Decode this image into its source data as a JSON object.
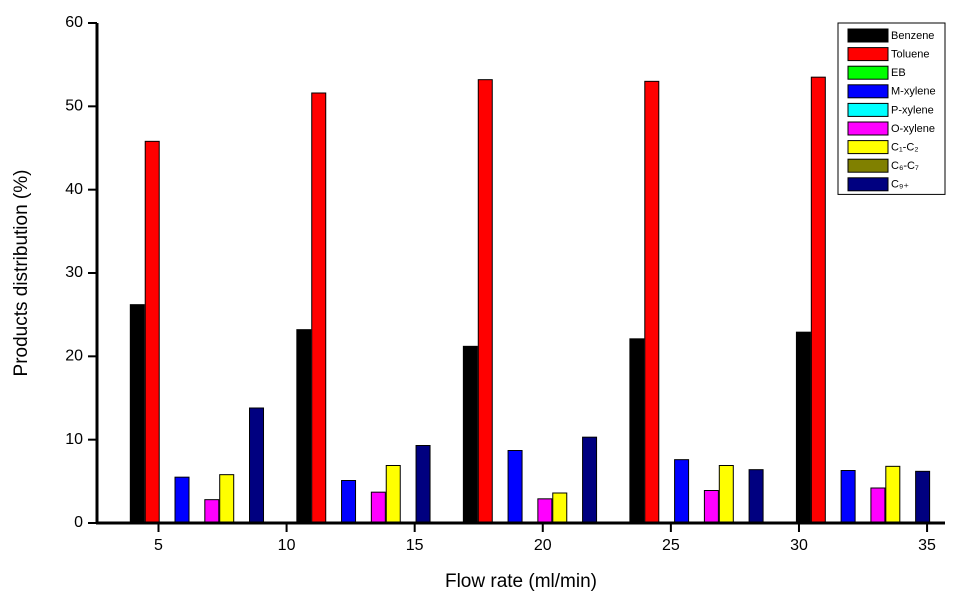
{
  "chart_data": {
    "type": "bar",
    "x_label": "Flow rate (ml/min)",
    "y_label": "Products distribution (%)",
    "x": [
      6.5,
      13,
      19.5,
      26,
      32.5
    ],
    "xlim": [
      2.6,
      35.7
    ],
    "xticks": [
      5,
      10,
      15,
      20,
      25,
      30,
      35
    ],
    "ylim": [
      0,
      60
    ],
    "yticks": [
      0,
      10,
      20,
      30,
      40,
      50,
      60
    ],
    "legend_position": "upper right",
    "series": [
      {
        "name": "Benzene",
        "color": "#000000",
        "values": [
          26.2,
          23.2,
          21.2,
          22.1,
          22.9
        ]
      },
      {
        "name": "Toluene",
        "color": "#ff0000",
        "values": [
          45.8,
          51.6,
          53.2,
          53.0,
          53.5
        ]
      },
      {
        "name": "EB",
        "color": "#00ff00",
        "values": [
          0,
          0,
          0,
          0,
          0
        ]
      },
      {
        "name": "M-xylene",
        "color": "#0000ff",
        "values": [
          5.5,
          5.1,
          8.7,
          7.6,
          6.3
        ]
      },
      {
        "name": "P-xylene",
        "color": "#00ffff",
        "values": [
          0,
          0,
          0,
          0,
          0
        ]
      },
      {
        "name": "O-xylene",
        "color": "#ff00ff",
        "values": [
          2.8,
          3.7,
          2.9,
          3.9,
          4.2
        ]
      },
      {
        "name": "C₁-C₂",
        "color": "#ffff00",
        "values": [
          5.8,
          6.9,
          3.6,
          6.9,
          6.8
        ]
      },
      {
        "name": "C₆-C₇",
        "color": "#808000",
        "values": [
          0,
          0,
          0,
          0,
          0
        ]
      },
      {
        "name": "C₉₊",
        "color": "#000080",
        "values": [
          13.8,
          9.3,
          10.3,
          6.4,
          6.2
        ]
      }
    ]
  }
}
